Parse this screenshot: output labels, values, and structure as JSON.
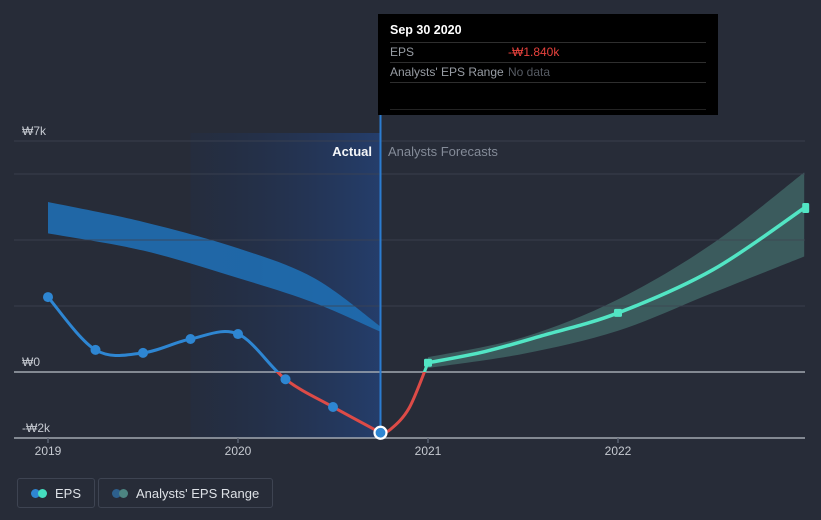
{
  "tooltip": {
    "date": "Sep 30 2020",
    "rows": [
      {
        "label": "EPS",
        "value": "-₩1.840k",
        "color": "#e8423d"
      },
      {
        "label": "Analysts' EPS Range",
        "value": "No data",
        "color": "#565b63"
      }
    ]
  },
  "annotations": {
    "actual": "Actual",
    "forecasts": "Analysts Forecasts"
  },
  "legend": [
    {
      "label": "EPS",
      "dot_colors": [
        "#2e86d2",
        "#45dfc0"
      ]
    },
    {
      "label": "Analysts' EPS Range",
      "dot_colors": [
        "#2d608d",
        "#4d8582"
      ]
    }
  ],
  "colors": {
    "background": "#272c38",
    "grid": "#3d4352",
    "grid_strong": "#a9afb7",
    "actual_blue": "#2e86d2",
    "negative_red": "#dd4b47",
    "forecast_teal": "#52e5c4",
    "historical_band": "#1f6cb0",
    "forecast_band": "#3d5f61",
    "divider": "#2b7cd0",
    "highlight_from": "rgba(20,50,110,0.10)",
    "highlight_to": "rgba(33,90,190,0.38)",
    "tick": "#596070"
  },
  "chart_data": {
    "type": "line",
    "currency": "₩",
    "unit": "k",
    "xlim": [
      2018.82,
      2022.98
    ],
    "ylim": [
      -2,
      7
    ],
    "x_ticks": [
      {
        "x": 2019,
        "label": "2019"
      },
      {
        "x": 2020,
        "label": "2020"
      },
      {
        "x": 2021,
        "label": "2021"
      },
      {
        "x": 2022,
        "label": "2022"
      }
    ],
    "y_gridlines": [
      {
        "v": 7,
        "label": "₩7k",
        "strong": false
      },
      {
        "v": 6,
        "label": "",
        "strong": false
      },
      {
        "v": 4,
        "label": "",
        "strong": false
      },
      {
        "v": 2,
        "label": "",
        "strong": false
      },
      {
        "v": 0,
        "label": "₩0",
        "strong": true
      },
      {
        "v": -2,
        "label": "-₩2k",
        "strong": true
      }
    ],
    "divider_x": 2020.75,
    "highlight_x": [
      2019.75,
      2020.75
    ],
    "series": [
      {
        "name": "eps-actual",
        "points": [
          [
            2019.0,
            2.27
          ],
          [
            2019.25,
            0.67
          ],
          [
            2019.5,
            0.58
          ],
          [
            2019.75,
            1.0
          ],
          [
            2020.0,
            1.15
          ],
          [
            2020.25,
            -0.22
          ],
          [
            2020.5,
            -1.06
          ],
          [
            2020.75,
            -1.84
          ]
        ],
        "dots": [
          [
            2019.0,
            2.27
          ],
          [
            2019.25,
            0.67
          ],
          [
            2019.5,
            0.58
          ],
          [
            2019.75,
            1.0
          ],
          [
            2020.0,
            1.15
          ],
          [
            2020.25,
            -0.22
          ],
          [
            2020.5,
            -1.06
          ]
        ]
      },
      {
        "name": "eps-transition",
        "points": [
          [
            2020.75,
            -1.84
          ],
          [
            2020.8,
            -1.75
          ],
          [
            2020.9,
            -1.1
          ],
          [
            2021.0,
            0.28
          ]
        ]
      },
      {
        "name": "eps-forecast",
        "points": [
          [
            2021.0,
            0.28
          ],
          [
            2021.3,
            0.62
          ],
          [
            2021.6,
            1.1
          ],
          [
            2022.0,
            1.79
          ],
          [
            2022.5,
            3.1
          ],
          [
            2022.98,
            4.97
          ]
        ],
        "square_dots": [
          [
            2021.0,
            0.28
          ],
          [
            2022.0,
            1.79
          ]
        ],
        "end_cap": [
          2022.98,
          4.97
        ]
      }
    ],
    "bands": [
      {
        "name": "historical-analyst-range",
        "top": [
          [
            2019.0,
            5.15
          ],
          [
            2019.5,
            4.55
          ],
          [
            2020.0,
            3.75
          ],
          [
            2020.4,
            2.85
          ],
          [
            2020.75,
            1.38
          ]
        ],
        "bottom": [
          [
            2019.0,
            4.2
          ],
          [
            2019.5,
            3.68
          ],
          [
            2020.0,
            2.85
          ],
          [
            2020.4,
            2.1
          ],
          [
            2020.75,
            1.22
          ]
        ]
      },
      {
        "name": "forecast-analyst-range",
        "top": [
          [
            2021.0,
            0.45
          ],
          [
            2021.5,
            1.05
          ],
          [
            2022.0,
            2.2
          ],
          [
            2022.5,
            3.9
          ],
          [
            2022.98,
            6.05
          ]
        ],
        "bottom": [
          [
            2021.0,
            0.12
          ],
          [
            2021.5,
            0.55
          ],
          [
            2022.0,
            1.25
          ],
          [
            2022.5,
            2.4
          ],
          [
            2022.98,
            3.5
          ]
        ]
      }
    ],
    "selected_point": {
      "x": 2020.75,
      "value": -1.84,
      "date": "Sep 30 2020"
    }
  }
}
